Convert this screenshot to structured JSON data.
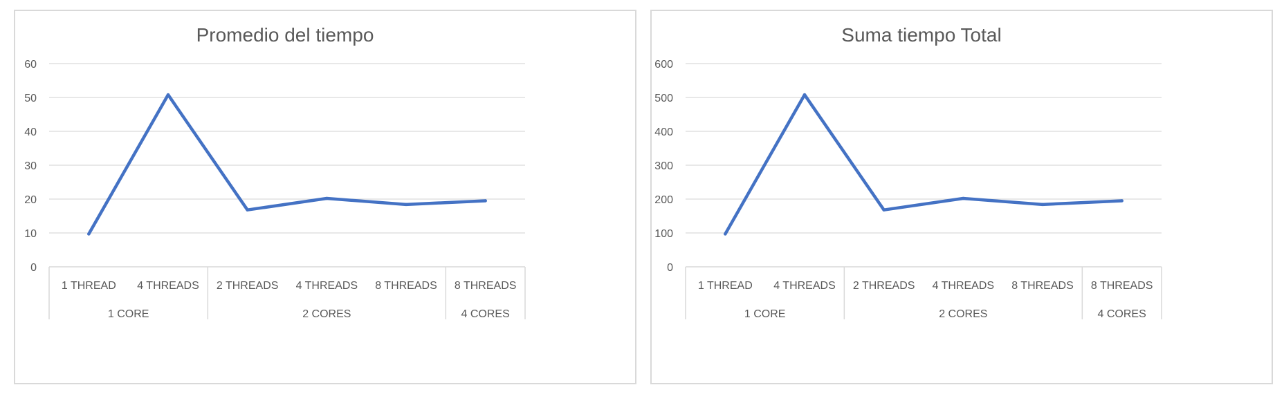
{
  "chart_data": [
    {
      "type": "line",
      "title": "Promedio del tiempo",
      "categories": [
        "1 THREAD",
        "4 THREADS",
        "2 THREADS",
        "4 THREADS",
        "8 THREADS",
        "8 THREADS"
      ],
      "groups": [
        {
          "label": "1 CORE",
          "count": 2
        },
        {
          "label": "2 CORES",
          "count": 3
        },
        {
          "label": "4 CORES",
          "count": 1
        }
      ],
      "series": [
        {
          "values": [
            9.7,
            50.8,
            16.8,
            20.2,
            18.4,
            19.5
          ]
        }
      ],
      "yticks": [
        0,
        10,
        20,
        30,
        40,
        50,
        60
      ],
      "ylim": [
        0,
        60
      ],
      "grid": true,
      "color": "#4472c4"
    },
    {
      "type": "line",
      "title": "Suma tiempo Total",
      "categories": [
        "1 THREAD",
        "4 THREADS",
        "2 THREADS",
        "4 THREADS",
        "8 THREADS",
        "8 THREADS"
      ],
      "groups": [
        {
          "label": "1 CORE",
          "count": 2
        },
        {
          "label": "2 CORES",
          "count": 3
        },
        {
          "label": "4 CORES",
          "count": 1
        }
      ],
      "series": [
        {
          "values": [
            97,
            508,
            168,
            202,
            184,
            195
          ]
        }
      ],
      "yticks": [
        0,
        100,
        200,
        300,
        400,
        500,
        600
      ],
      "ylim": [
        0,
        600
      ],
      "grid": true,
      "color": "#4472c4"
    }
  ]
}
